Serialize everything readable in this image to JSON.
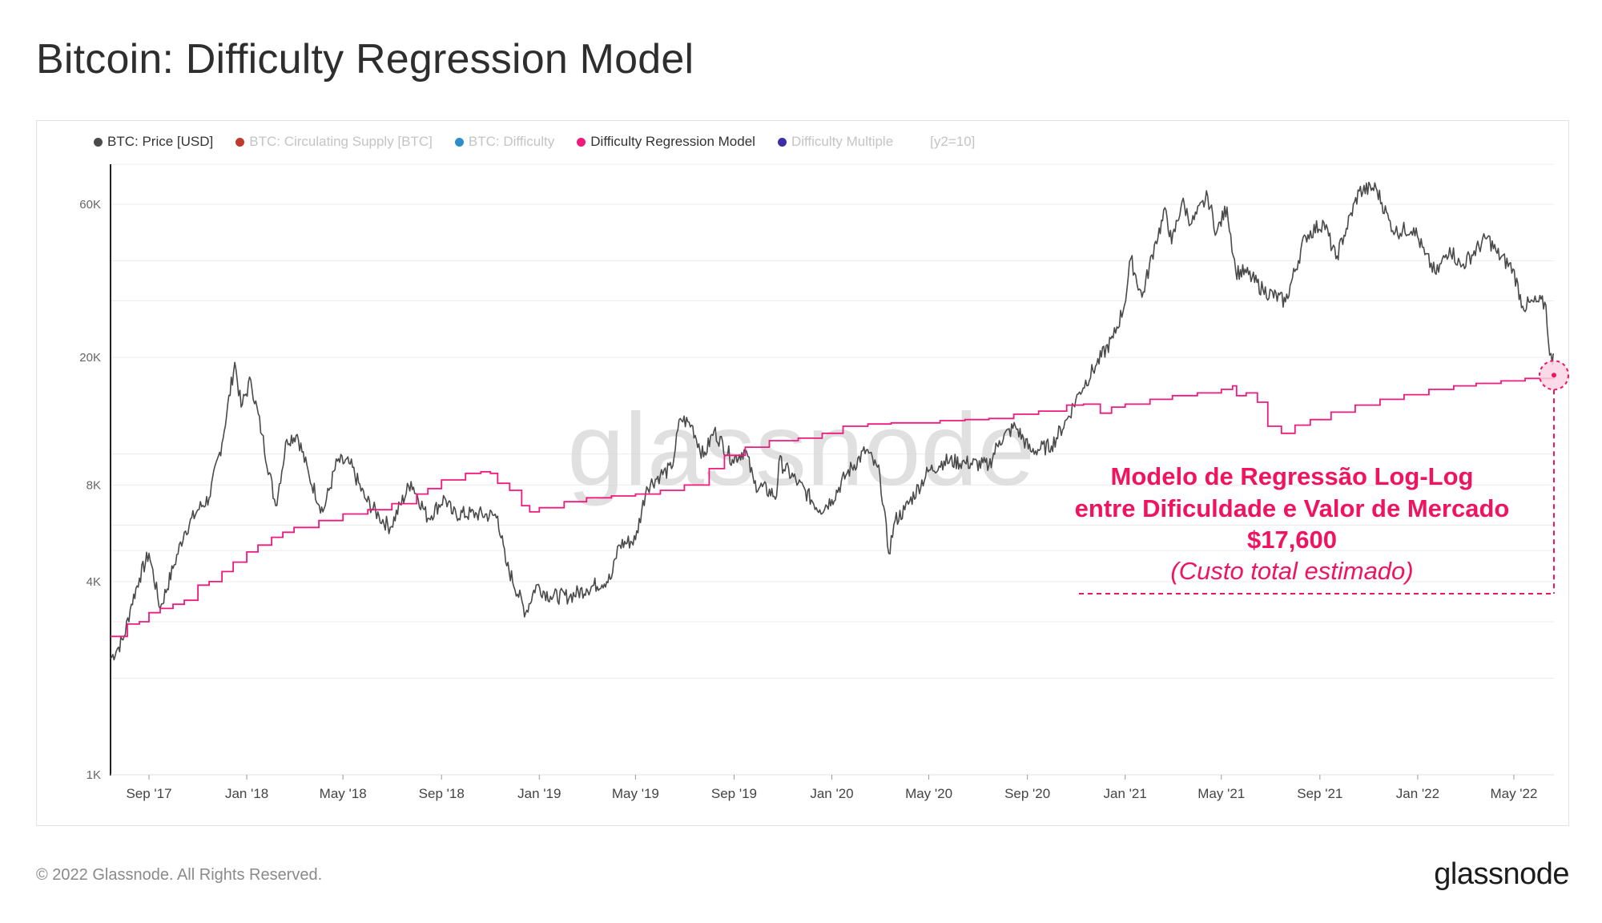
{
  "page": {
    "title": "Bitcoin: Difficulty Regression Model",
    "copyright": "© 2022 Glassnode. All Rights Reserved.",
    "brand": "glassnode",
    "watermark": "glassnode"
  },
  "legend": {
    "items": [
      {
        "label": "BTC: Price [USD]",
        "color": "#4a4a4a",
        "active": true
      },
      {
        "label": "BTC: Circulating Supply [BTC]",
        "color": "#c0392b",
        "active": false
      },
      {
        "label": "BTC: Difficulty",
        "color": "#2d8ecb",
        "active": false
      },
      {
        "label": "Difficulty Regression Model",
        "color": "#f0197d",
        "active": true
      },
      {
        "label": "Difficulty Multiple",
        "color": "#3b2fa8",
        "active": false
      }
    ],
    "extra": "[y2=10]"
  },
  "annotation": {
    "line1": "Modelo de Regressão Log-Log",
    "line2": "entre Dificuldade e Valor de Mercado",
    "value": "$17,600",
    "note": "(Custo total estimado)",
    "color": "#f0145f"
  },
  "chart_data": {
    "type": "line",
    "y_scale": "log",
    "ylim": [
      1000,
      80000
    ],
    "y_ticks": [
      1000,
      4000,
      8000,
      20000,
      60000
    ],
    "y_tick_labels": [
      "1K",
      "4K",
      "8K",
      "20K",
      "60K"
    ],
    "x_range": [
      "2017-07-15",
      "2022-06-20"
    ],
    "x_ticks": [
      "2017-09-01",
      "2018-01-01",
      "2018-05-01",
      "2018-09-01",
      "2019-01-01",
      "2019-05-01",
      "2019-09-01",
      "2020-01-01",
      "2020-05-01",
      "2020-09-01",
      "2021-01-01",
      "2021-05-01",
      "2021-09-01",
      "2022-01-01",
      "2022-05-01"
    ],
    "x_tick_labels": [
      "Sep '17",
      "Jan '18",
      "May '18",
      "Sep '18",
      "Jan '19",
      "May '19",
      "Sep '19",
      "Jan '20",
      "May '20",
      "Sep '20",
      "Jan '21",
      "May '21",
      "Sep '21",
      "Jan '22",
      "May '22"
    ],
    "grid": true,
    "series": [
      {
        "name": "BTC: Price [USD]",
        "color": "#4a4a4a",
        "points": [
          [
            "2017-07-15",
            2300
          ],
          [
            "2017-07-25",
            2500
          ],
          [
            "2017-08-01",
            2700
          ],
          [
            "2017-08-10",
            3400
          ],
          [
            "2017-08-20",
            4100
          ],
          [
            "2017-09-01",
            4900
          ],
          [
            "2017-09-15",
            3300
          ],
          [
            "2017-10-01",
            4400
          ],
          [
            "2017-10-15",
            5700
          ],
          [
            "2017-11-01",
            6700
          ],
          [
            "2017-11-15",
            7300
          ],
          [
            "2017-12-01",
            10800
          ],
          [
            "2017-12-17",
            19300
          ],
          [
            "2017-12-25",
            14000
          ],
          [
            "2018-01-06",
            17000
          ],
          [
            "2018-01-20",
            11500
          ],
          [
            "2018-02-06",
            6900
          ],
          [
            "2018-02-20",
            11100
          ],
          [
            "2018-03-05",
            11500
          ],
          [
            "2018-03-20",
            8500
          ],
          [
            "2018-04-06",
            6600
          ],
          [
            "2018-04-24",
            9500
          ],
          [
            "2018-05-10",
            9300
          ],
          [
            "2018-05-28",
            7300
          ],
          [
            "2018-06-15",
            6400
          ],
          [
            "2018-06-29",
            5900
          ],
          [
            "2018-07-25",
            8200
          ],
          [
            "2018-08-15",
            6300
          ],
          [
            "2018-09-05",
            7300
          ],
          [
            "2018-09-15",
            6500
          ],
          [
            "2018-10-15",
            6500
          ],
          [
            "2018-11-10",
            6400
          ],
          [
            "2018-11-20",
            4600
          ],
          [
            "2018-12-15",
            3200
          ],
          [
            "2018-12-28",
            3900
          ],
          [
            "2019-01-15",
            3600
          ],
          [
            "2019-02-08",
            3600
          ],
          [
            "2019-03-01",
            3800
          ],
          [
            "2019-04-01",
            4100
          ],
          [
            "2019-04-10",
            5200
          ],
          [
            "2019-05-01",
            5400
          ],
          [
            "2019-05-15",
            7900
          ],
          [
            "2019-06-01",
            8600
          ],
          [
            "2019-06-15",
            9000
          ],
          [
            "2019-06-26",
            12900
          ],
          [
            "2019-07-10",
            12300
          ],
          [
            "2019-07-25",
            9800
          ],
          [
            "2019-08-07",
            11800
          ],
          [
            "2019-08-30",
            9600
          ],
          [
            "2019-09-15",
            10300
          ],
          [
            "2019-09-26",
            8100
          ],
          [
            "2019-10-24",
            7400
          ],
          [
            "2019-10-27",
            9500
          ],
          [
            "2019-11-20",
            8100
          ],
          [
            "2019-12-17",
            6700
          ],
          [
            "2020-01-01",
            7200
          ],
          [
            "2020-01-20",
            8700
          ],
          [
            "2020-02-13",
            10300
          ],
          [
            "2020-03-01",
            8600
          ],
          [
            "2020-03-12",
            4900
          ],
          [
            "2020-03-20",
            6200
          ],
          [
            "2020-04-01",
            6700
          ],
          [
            "2020-04-30",
            8800
          ],
          [
            "2020-05-20",
            9500
          ],
          [
            "2020-06-15",
            9400
          ],
          [
            "2020-07-15",
            9200
          ],
          [
            "2020-07-28",
            11000
          ],
          [
            "2020-08-17",
            12200
          ],
          [
            "2020-09-05",
            10200
          ],
          [
            "2020-10-01",
            10600
          ],
          [
            "2020-10-21",
            12900
          ],
          [
            "2020-11-05",
            15600
          ],
          [
            "2020-11-25",
            18800
          ],
          [
            "2020-12-17",
            23000
          ],
          [
            "2020-12-31",
            29000
          ],
          [
            "2021-01-08",
            40600
          ],
          [
            "2021-01-22",
            30800
          ],
          [
            "2021-02-08",
            46000
          ],
          [
            "2021-02-21",
            57500
          ],
          [
            "2021-02-28",
            45200
          ],
          [
            "2021-03-13",
            61200
          ],
          [
            "2021-03-25",
            52300
          ],
          [
            "2021-04-14",
            63500
          ],
          [
            "2021-04-25",
            49000
          ],
          [
            "2021-05-08",
            58800
          ],
          [
            "2021-05-19",
            37000
          ],
          [
            "2021-06-01",
            36700
          ],
          [
            "2021-06-22",
            32500
          ],
          [
            "2021-07-20",
            29800
          ],
          [
            "2021-08-14",
            47800
          ],
          [
            "2021-09-06",
            52700
          ],
          [
            "2021-09-21",
            40600
          ],
          [
            "2021-10-01",
            48000
          ],
          [
            "2021-10-20",
            66000
          ],
          [
            "2021-11-10",
            67500
          ],
          [
            "2021-11-26",
            53700
          ],
          [
            "2021-12-04",
            49200
          ],
          [
            "2021-12-27",
            50700
          ],
          [
            "2022-01-10",
            41800
          ],
          [
            "2022-01-24",
            36300
          ],
          [
            "2022-02-10",
            44000
          ],
          [
            "2022-02-24",
            38300
          ],
          [
            "2022-03-29",
            47400
          ],
          [
            "2022-04-10",
            42200
          ],
          [
            "2022-04-30",
            37700
          ],
          [
            "2022-05-12",
            28900
          ],
          [
            "2022-06-01",
            29800
          ],
          [
            "2022-06-10",
            29100
          ],
          [
            "2022-06-13",
            22500
          ],
          [
            "2022-06-18",
            19000
          ],
          [
            "2022-06-20",
            20500
          ]
        ]
      },
      {
        "name": "Difficulty Regression Model",
        "color": "#f0197d",
        "points": [
          [
            "2017-07-15",
            2700
          ],
          [
            "2017-08-01",
            2700
          ],
          [
            "2017-08-05",
            2950
          ],
          [
            "2017-08-20",
            3000
          ],
          [
            "2017-09-01",
            3200
          ],
          [
            "2017-09-15",
            3300
          ],
          [
            "2017-10-01",
            3400
          ],
          [
            "2017-10-15",
            3500
          ],
          [
            "2017-11-01",
            3900
          ],
          [
            "2017-11-15",
            4000
          ],
          [
            "2017-12-01",
            4300
          ],
          [
            "2017-12-15",
            4600
          ],
          [
            "2018-01-01",
            4950
          ],
          [
            "2018-01-15",
            5200
          ],
          [
            "2018-02-01",
            5500
          ],
          [
            "2018-02-15",
            5700
          ],
          [
            "2018-03-01",
            5900
          ],
          [
            "2018-04-01",
            6200
          ],
          [
            "2018-05-01",
            6500
          ],
          [
            "2018-06-01",
            6700
          ],
          [
            "2018-07-01",
            7000
          ],
          [
            "2018-08-01",
            7500
          ],
          [
            "2018-08-15",
            7800
          ],
          [
            "2018-09-01",
            8300
          ],
          [
            "2018-10-01",
            8700
          ],
          [
            "2018-10-20",
            8800
          ],
          [
            "2018-11-01",
            8700
          ],
          [
            "2018-11-10",
            8100
          ],
          [
            "2018-11-25",
            7700
          ],
          [
            "2018-12-10",
            6900
          ],
          [
            "2018-12-20",
            6600
          ],
          [
            "2019-01-01",
            6800
          ],
          [
            "2019-02-01",
            7100
          ],
          [
            "2019-03-01",
            7300
          ],
          [
            "2019-04-01",
            7400
          ],
          [
            "2019-05-01",
            7500
          ],
          [
            "2019-06-01",
            7700
          ],
          [
            "2019-07-01",
            8000
          ],
          [
            "2019-08-01",
            9000
          ],
          [
            "2019-08-20",
            9900
          ],
          [
            "2019-09-15",
            10500
          ],
          [
            "2019-10-15",
            11000
          ],
          [
            "2019-11-20",
            11200
          ],
          [
            "2019-12-20",
            11600
          ],
          [
            "2020-01-15",
            12200
          ],
          [
            "2020-02-15",
            12400
          ],
          [
            "2020-03-15",
            12500
          ],
          [
            "2020-04-15",
            12500
          ],
          [
            "2020-05-15",
            12700
          ],
          [
            "2020-06-15",
            12800
          ],
          [
            "2020-07-15",
            12900
          ],
          [
            "2020-08-15",
            13300
          ],
          [
            "2020-09-15",
            13600
          ],
          [
            "2020-10-20",
            14200
          ],
          [
            "2020-11-10",
            14300
          ],
          [
            "2020-12-01",
            13400
          ],
          [
            "2020-12-15",
            14000
          ],
          [
            "2021-01-01",
            14300
          ],
          [
            "2021-02-01",
            14800
          ],
          [
            "2021-03-01",
            15200
          ],
          [
            "2021-04-01",
            15500
          ],
          [
            "2021-05-01",
            15900
          ],
          [
            "2021-05-15",
            16300
          ],
          [
            "2021-05-20",
            15200
          ],
          [
            "2021-06-01",
            15500
          ],
          [
            "2021-06-15",
            14500
          ],
          [
            "2021-06-28",
            12200
          ],
          [
            "2021-07-15",
            11600
          ],
          [
            "2021-08-01",
            12300
          ],
          [
            "2021-08-20",
            12800
          ],
          [
            "2021-09-15",
            13500
          ],
          [
            "2021-10-15",
            14200
          ],
          [
            "2021-11-15",
            14800
          ],
          [
            "2021-12-15",
            15300
          ],
          [
            "2022-01-15",
            15900
          ],
          [
            "2022-02-15",
            16300
          ],
          [
            "2022-03-15",
            16600
          ],
          [
            "2022-04-15",
            16900
          ],
          [
            "2022-05-15",
            17200
          ],
          [
            "2022-06-20",
            17600
          ]
        ]
      }
    ],
    "highlight": {
      "date": "2022-06-20",
      "value": 17600
    }
  }
}
